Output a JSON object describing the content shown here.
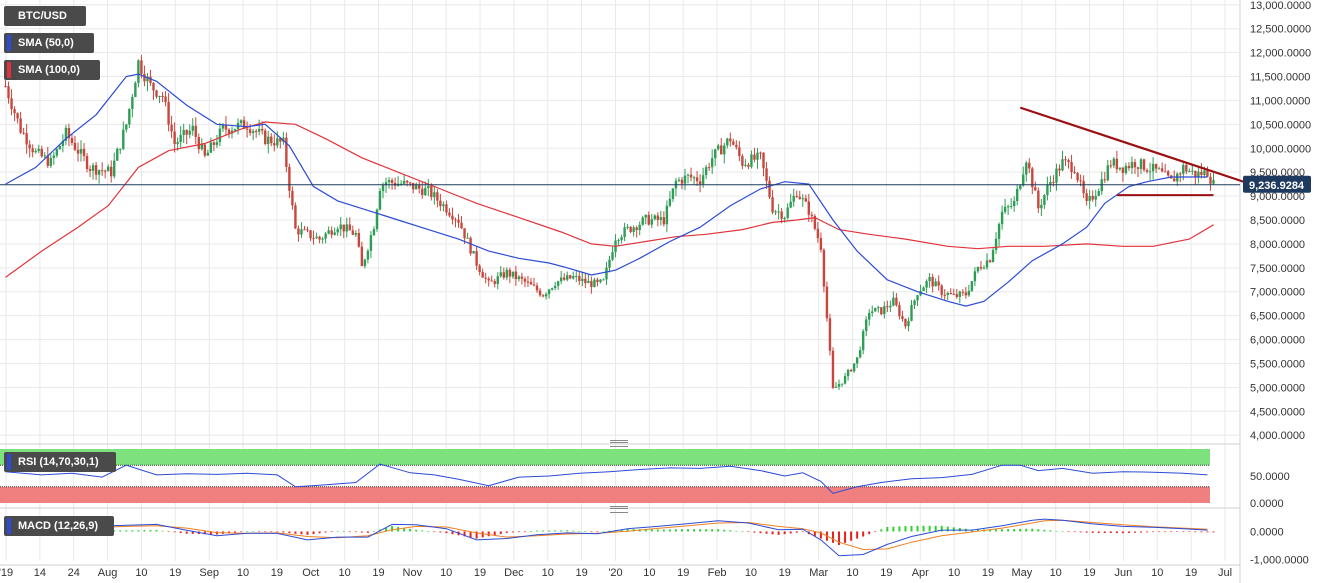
{
  "colors": {
    "bull": "#2e9d55",
    "bear": "#c9463d",
    "sma50": "#2c4bd6",
    "sma100": "#e0333b",
    "trendline": "#9b0f12",
    "rsi_upper": "#7de27d",
    "rsi_lower": "#f08080",
    "macd_hist_pos": "#2fd12f",
    "macd_hist_neg": "#e8201b",
    "macd_line": "#2c4bd6",
    "signal_line": "#f08020",
    "grid": "#e9e9e9",
    "price_badge": "#1f3a5f"
  },
  "legend": {
    "symbol": "BTC/USD",
    "sma_fast": "SMA (50,0)",
    "sma_slow": "SMA (100,0)",
    "rsi": "RSI (14,70,30,1)",
    "macd": "MACD (12,26,9)"
  },
  "price_badge": "9,236.9284",
  "x_ticks": [
    "'19",
    "14",
    "24",
    "Aug",
    "10",
    "19",
    "Sep",
    "10",
    "19",
    "Oct",
    "10",
    "19",
    "Nov",
    "10",
    "19",
    "Dec",
    "10",
    "19",
    "'20",
    "10",
    "19",
    "Feb",
    "10",
    "19",
    "Mar",
    "10",
    "19",
    "Apr",
    "10",
    "19",
    "May",
    "10",
    "19",
    "Jun",
    "10",
    "19",
    "Jul"
  ],
  "chart_data": [
    {
      "type": "candlestick",
      "symbol": "BTC/USD",
      "ylim": [
        3900,
        13100
      ],
      "y_ticks": [
        "13,000.0000",
        "12,500.0000",
        "12,000.0000",
        "11,500.0000",
        "11,000.0000",
        "10,500.0000",
        "10,000.0000",
        "9,500.0000",
        "9,000.0000",
        "8,500.0000",
        "8,000.0000",
        "7,500.0000",
        "7,000.0000",
        "6,500.0000",
        "6,000.0000",
        "5,500.0000",
        "5,000.0000",
        "4,500.0000",
        "4,000.0000"
      ],
      "close_path": [
        [
          0,
          11300
        ],
        [
          5,
          10400
        ],
        [
          10,
          9900
        ],
        [
          15,
          9700
        ],
        [
          20,
          10300
        ],
        [
          28,
          9600
        ],
        [
          35,
          9500
        ],
        [
          40,
          10500
        ],
        [
          44,
          11800
        ],
        [
          48,
          11300
        ],
        [
          52,
          11100
        ],
        [
          56,
          10100
        ],
        [
          62,
          10400
        ],
        [
          66,
          9800
        ],
        [
          72,
          10400
        ],
        [
          80,
          10500
        ],
        [
          86,
          10200
        ],
        [
          92,
          10100
        ],
        [
          96,
          8300
        ],
        [
          100,
          8200
        ],
        [
          104,
          8100
        ],
        [
          110,
          8400
        ],
        [
          116,
          8200
        ],
        [
          118,
          7500
        ],
        [
          122,
          8400
        ],
        [
          124,
          9200
        ],
        [
          126,
          9300
        ],
        [
          132,
          9250
        ],
        [
          140,
          9100
        ],
        [
          146,
          8750
        ],
        [
          150,
          8500
        ],
        [
          156,
          7600
        ],
        [
          160,
          7150
        ],
        [
          166,
          7400
        ],
        [
          172,
          7200
        ],
        [
          178,
          6950
        ],
        [
          182,
          7200
        ],
        [
          188,
          7300
        ],
        [
          192,
          7200
        ],
        [
          196,
          7150
        ],
        [
          198,
          7200
        ],
        [
          202,
          8150
        ],
        [
          206,
          8300
        ],
        [
          212,
          8500
        ],
        [
          218,
          8500
        ],
        [
          222,
          9300
        ],
        [
          226,
          9400
        ],
        [
          230,
          9350
        ],
        [
          234,
          9800
        ],
        [
          240,
          10200
        ],
        [
          244,
          9700
        ],
        [
          250,
          9800
        ],
        [
          254,
          8750
        ],
        [
          258,
          8600
        ],
        [
          262,
          9100
        ],
        [
          266,
          8700
        ],
        [
          270,
          7950
        ],
        [
          274,
          4950
        ],
        [
          278,
          5200
        ],
        [
          282,
          5600
        ],
        [
          286,
          6600
        ],
        [
          290,
          6600
        ],
        [
          294,
          6800
        ],
        [
          298,
          6300
        ],
        [
          302,
          7000
        ],
        [
          306,
          7250
        ],
        [
          310,
          7000
        ],
        [
          314,
          6900
        ],
        [
          318,
          6950
        ],
        [
          322,
          7500
        ],
        [
          326,
          7700
        ],
        [
          330,
          8650
        ],
        [
          334,
          8850
        ],
        [
          338,
          9800
        ],
        [
          342,
          8750
        ],
        [
          346,
          9300
        ],
        [
          350,
          9700
        ],
        [
          354,
          9600
        ],
        [
          358,
          8800
        ],
        [
          362,
          9200
        ],
        [
          366,
          9700
        ],
        [
          370,
          9600
        ],
        [
          374,
          9700
        ],
        [
          378,
          9600
        ],
        [
          382,
          9500
        ],
        [
          386,
          9300
        ],
        [
          390,
          9600
        ],
        [
          394,
          9450
        ],
        [
          398,
          9500
        ],
        [
          400,
          9250
        ]
      ],
      "candle_count": 401
    },
    {
      "type": "line",
      "name": "SMA (50,0)",
      "points": [
        [
          0,
          9250
        ],
        [
          10,
          9600
        ],
        [
          20,
          10200
        ],
        [
          30,
          10700
        ],
        [
          40,
          11500
        ],
        [
          44,
          11550
        ],
        [
          50,
          11400
        ],
        [
          60,
          10900
        ],
        [
          70,
          10500
        ],
        [
          80,
          10450
        ],
        [
          86,
          10500
        ],
        [
          94,
          10050
        ],
        [
          102,
          9200
        ],
        [
          110,
          8900
        ],
        [
          120,
          8700
        ],
        [
          130,
          8500
        ],
        [
          140,
          8300
        ],
        [
          150,
          8100
        ],
        [
          160,
          7850
        ],
        [
          170,
          7700
        ],
        [
          180,
          7600
        ],
        [
          186,
          7500
        ],
        [
          194,
          7350
        ],
        [
          202,
          7450
        ],
        [
          210,
          7700
        ],
        [
          220,
          8050
        ],
        [
          230,
          8350
        ],
        [
          240,
          8800
        ],
        [
          250,
          9150
        ],
        [
          258,
          9300
        ],
        [
          266,
          9250
        ],
        [
          274,
          8500
        ],
        [
          282,
          7850
        ],
        [
          292,
          7250
        ],
        [
          302,
          7000
        ],
        [
          312,
          6800
        ],
        [
          318,
          6700
        ],
        [
          324,
          6800
        ],
        [
          332,
          7200
        ],
        [
          340,
          7650
        ],
        [
          350,
          8000
        ],
        [
          358,
          8350
        ],
        [
          364,
          8850
        ],
        [
          372,
          9200
        ],
        [
          378,
          9300
        ],
        [
          386,
          9400
        ],
        [
          394,
          9400
        ],
        [
          398,
          9400
        ]
      ]
    },
    {
      "type": "line",
      "name": "SMA (100,0)",
      "points": [
        [
          0,
          7300
        ],
        [
          12,
          7850
        ],
        [
          24,
          8350
        ],
        [
          34,
          8800
        ],
        [
          44,
          9600
        ],
        [
          54,
          9950
        ],
        [
          66,
          10100
        ],
        [
          78,
          10400
        ],
        [
          86,
          10550
        ],
        [
          96,
          10500
        ],
        [
          106,
          10200
        ],
        [
          118,
          9800
        ],
        [
          130,
          9500
        ],
        [
          142,
          9200
        ],
        [
          156,
          8850
        ],
        [
          170,
          8550
        ],
        [
          184,
          8250
        ],
        [
          194,
          8000
        ],
        [
          202,
          7950
        ],
        [
          212,
          8050
        ],
        [
          222,
          8150
        ],
        [
          232,
          8200
        ],
        [
          244,
          8300
        ],
        [
          254,
          8450
        ],
        [
          262,
          8500
        ],
        [
          268,
          8550
        ],
        [
          276,
          8300
        ],
        [
          286,
          8200
        ],
        [
          298,
          8100
        ],
        [
          312,
          7950
        ],
        [
          322,
          7900
        ],
        [
          332,
          7950
        ],
        [
          344,
          7950
        ],
        [
          358,
          8000
        ],
        [
          370,
          7950
        ],
        [
          380,
          7950
        ],
        [
          392,
          8100
        ],
        [
          400,
          8400
        ]
      ]
    },
    {
      "type": "annotation",
      "name": "descending trendline",
      "from": [
        336,
        10850
      ],
      "to": [
        410,
        9300
      ]
    },
    {
      "type": "annotation",
      "name": "horizontal support",
      "from": [
        368,
        9020
      ],
      "to": [
        400,
        9020
      ]
    },
    {
      "type": "annotation",
      "name": "current price line",
      "value": 9237
    },
    {
      "type": "line",
      "name": "RSI (14,70,30,1)",
      "ylim": [
        0,
        100
      ],
      "y_ticks": [
        "50.0000",
        "0.0000"
      ],
      "upper": 70,
      "lower": 30,
      "points": [
        [
          0,
          58
        ],
        [
          12,
          52
        ],
        [
          22,
          55
        ],
        [
          32,
          48
        ],
        [
          40,
          70
        ],
        [
          50,
          52
        ],
        [
          60,
          54
        ],
        [
          70,
          53
        ],
        [
          80,
          55
        ],
        [
          90,
          52
        ],
        [
          96,
          30
        ],
        [
          104,
          33
        ],
        [
          116,
          38
        ],
        [
          124,
          72
        ],
        [
          134,
          56
        ],
        [
          142,
          52
        ],
        [
          150,
          44
        ],
        [
          160,
          32
        ],
        [
          170,
          48
        ],
        [
          180,
          50
        ],
        [
          190,
          55
        ],
        [
          200,
          58
        ],
        [
          210,
          62
        ],
        [
          220,
          65
        ],
        [
          230,
          64
        ],
        [
          240,
          68
        ],
        [
          250,
          60
        ],
        [
          258,
          50
        ],
        [
          264,
          56
        ],
        [
          270,
          40
        ],
        [
          274,
          18
        ],
        [
          282,
          30
        ],
        [
          290,
          38
        ],
        [
          300,
          45
        ],
        [
          310,
          47
        ],
        [
          320,
          53
        ],
        [
          330,
          70
        ],
        [
          336,
          70
        ],
        [
          342,
          60
        ],
        [
          350,
          64
        ],
        [
          360,
          55
        ],
        [
          370,
          58
        ],
        [
          380,
          57
        ],
        [
          390,
          55
        ],
        [
          398,
          52
        ]
      ]
    },
    {
      "type": "line",
      "name": "MACD (12,26,9)",
      "ylim": [
        -1050,
        550
      ],
      "y_ticks": [
        "0.0000",
        "-1,000.0000"
      ],
      "macd": [
        [
          0,
          -50
        ],
        [
          20,
          150
        ],
        [
          40,
          220
        ],
        [
          50,
          250
        ],
        [
          60,
          40
        ],
        [
          70,
          -150
        ],
        [
          80,
          -60
        ],
        [
          90,
          -70
        ],
        [
          100,
          -300
        ],
        [
          110,
          -200
        ],
        [
          120,
          -200
        ],
        [
          128,
          250
        ],
        [
          136,
          240
        ],
        [
          146,
          100
        ],
        [
          156,
          -300
        ],
        [
          166,
          -250
        ],
        [
          176,
          -120
        ],
        [
          186,
          -50
        ],
        [
          196,
          -80
        ],
        [
          206,
          100
        ],
        [
          216,
          180
        ],
        [
          226,
          280
        ],
        [
          236,
          380
        ],
        [
          246,
          300
        ],
        [
          256,
          60
        ],
        [
          264,
          80
        ],
        [
          270,
          -300
        ],
        [
          276,
          -860
        ],
        [
          284,
          -820
        ],
        [
          292,
          -460
        ],
        [
          300,
          -180
        ],
        [
          310,
          50
        ],
        [
          320,
          50
        ],
        [
          330,
          200
        ],
        [
          340,
          400
        ],
        [
          344,
          440
        ],
        [
          350,
          400
        ],
        [
          360,
          270
        ],
        [
          370,
          180
        ],
        [
          380,
          150
        ],
        [
          390,
          100
        ],
        [
          398,
          50
        ]
      ],
      "signal": [
        [
          0,
          0
        ],
        [
          20,
          100
        ],
        [
          40,
          180
        ],
        [
          50,
          200
        ],
        [
          60,
          120
        ],
        [
          70,
          -40
        ],
        [
          80,
          -70
        ],
        [
          90,
          -50
        ],
        [
          100,
          -180
        ],
        [
          110,
          -220
        ],
        [
          120,
          -150
        ],
        [
          128,
          60
        ],
        [
          136,
          180
        ],
        [
          146,
          160
        ],
        [
          156,
          -50
        ],
        [
          166,
          -200
        ],
        [
          176,
          -150
        ],
        [
          186,
          -90
        ],
        [
          196,
          -60
        ],
        [
          206,
          10
        ],
        [
          216,
          110
        ],
        [
          226,
          200
        ],
        [
          236,
          300
        ],
        [
          246,
          320
        ],
        [
          256,
          180
        ],
        [
          264,
          100
        ],
        [
          270,
          -50
        ],
        [
          276,
          -380
        ],
        [
          284,
          -640
        ],
        [
          292,
          -620
        ],
        [
          300,
          -380
        ],
        [
          310,
          -150
        ],
        [
          320,
          -20
        ],
        [
          330,
          120
        ],
        [
          340,
          300
        ],
        [
          344,
          380
        ],
        [
          350,
          400
        ],
        [
          360,
          320
        ],
        [
          370,
          240
        ],
        [
          380,
          170
        ],
        [
          390,
          120
        ],
        [
          398,
          80
        ]
      ]
    }
  ]
}
